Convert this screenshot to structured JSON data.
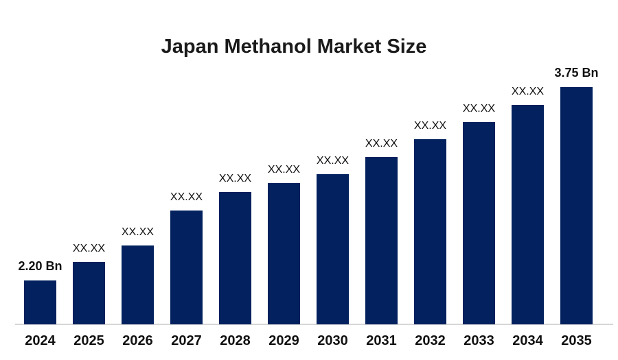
{
  "chart_data": {
    "type": "bar",
    "title": "Japan Methanol Market Size",
    "categories": [
      "2024",
      "2025",
      "2026",
      "2027",
      "2028",
      "2029",
      "2030",
      "2031",
      "2032",
      "2033",
      "2034",
      "2035"
    ],
    "values": [
      2.2,
      2.35,
      2.48,
      2.76,
      2.91,
      2.98,
      3.05,
      3.19,
      3.33,
      3.47,
      3.61,
      3.75
    ],
    "bar_labels": [
      "2.20 Bn",
      "XX.XX",
      "XX.XX",
      "XX.XX",
      "XX.XX",
      "XX.XX",
      "XX.XX",
      "XX.XX",
      "XX.XX",
      "XX.XX",
      "XX.XX",
      "3.75 Bn"
    ],
    "unit": "Bn",
    "first_year_value_label": "2.20 Bn",
    "last_year_value_label": "3.75 Bn",
    "xlabel": "",
    "ylabel": "",
    "legend": "none",
    "grid": false,
    "y_axis": "hidden",
    "baseline_value": 1.85,
    "bar_color": "#02215E",
    "axis_line_color": "#D6D6D6",
    "label_color": "#111111",
    "background_color": "#FFFFFF"
  }
}
